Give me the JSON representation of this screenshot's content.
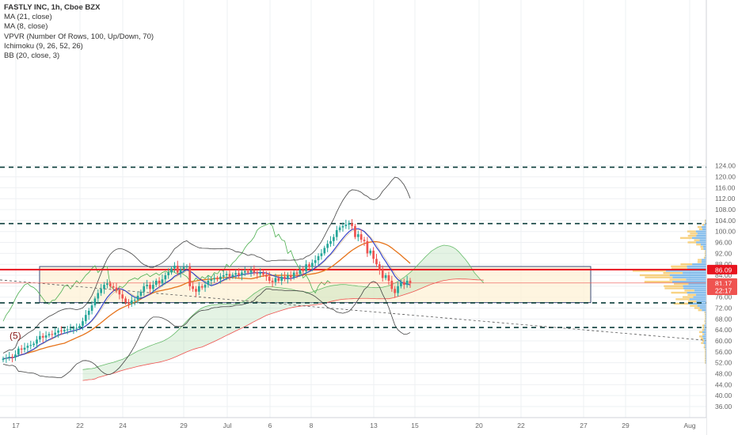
{
  "legend": {
    "title": "FASTLY INC, 1h, Cboe BZX",
    "lines": [
      "MA (21, close)",
      "MA (8, close)",
      "VPVR (Number Of Rows, 100, Up/Down, 70)",
      "Ichimoku (9, 26, 52, 26)",
      "BB (20, close, 3)"
    ]
  },
  "chart_data": {
    "type": "candlestick",
    "symbol": "FASTLY INC",
    "interval": "1h",
    "exchange": "Cboe BZX",
    "y_ticks": [
      36,
      40,
      44,
      48,
      52,
      56,
      60,
      64,
      68,
      72,
      76,
      80,
      84,
      88,
      92,
      96,
      100,
      104,
      108,
      112,
      116,
      120,
      124
    ],
    "y_tick_labels": [
      "36.00",
      "40.00",
      "44.00",
      "48.00",
      "52.00",
      "56.00",
      "60.00",
      "64.00",
      "68.00",
      "72.00",
      "76.00",
      "80.00",
      "84.00",
      "88.00",
      "92.00",
      "96.00",
      "100.00",
      "104.00",
      "108.00",
      "112.00",
      "116.00",
      "120.00",
      "124.00"
    ],
    "ylim": [
      32.5,
      125
    ],
    "x_ticks": [
      "17",
      "22",
      "24",
      "29",
      "Jul",
      "6",
      "8",
      "13",
      "15",
      "20",
      "22",
      "27",
      "29",
      "Aug"
    ],
    "price_labels": [
      {
        "text": "86.09",
        "value": 86.09,
        "color": "#e8141e"
      },
      {
        "text": "81.17",
        "value": 81.17,
        "color": "#ef5350"
      },
      {
        "text": "22:17",
        "value": 78.5,
        "color": "#ef5350"
      }
    ],
    "horizontal_levels": [
      123.5,
      102.9,
      73.9,
      64.9
    ],
    "red_level": 86.09,
    "last_price_line": 81.17,
    "range_box": {
      "top": 87.2,
      "bottom": 74.0
    },
    "annotation": "(5)",
    "close_series": [
      53.5,
      53.8,
      54.2,
      54.0,
      55.0,
      57.2,
      56.8,
      57.5,
      58.2,
      58.5,
      59.0,
      60.5,
      61.8,
      61.2,
      62.0,
      62.5,
      62.2,
      63.0,
      63.8,
      63.5,
      64.0,
      64.2,
      64.4,
      64.5,
      64.8,
      65.5,
      67.2,
      69.5,
      71.0,
      73.0,
      75.5,
      77.5,
      79.0,
      80.5,
      81.0,
      80.0,
      79.5,
      78.5,
      77.0,
      75.5,
      74.0,
      73.5,
      74.8,
      75.0,
      76.5,
      78.0,
      80.0,
      80.5,
      79.0,
      80.5,
      82.0,
      81.0,
      82.5,
      84.0,
      85.0,
      86.5,
      87.5,
      85.0,
      86.2,
      87.0,
      87.2,
      80.0,
      79.0,
      78.0,
      80.0,
      79.5,
      80.5,
      82.0,
      82.5,
      83.0,
      82.5,
      83.5,
      84.0,
      84.5,
      83.5,
      84.2,
      84.8,
      84.0,
      85.0,
      85.5,
      85.0,
      85.8,
      85.0,
      84.5,
      85.0,
      84.2,
      83.5,
      82.0,
      81.5,
      83.0,
      82.0,
      83.5,
      82.8,
      84.0,
      83.2,
      85.0,
      84.5,
      86.0,
      85.5,
      88.0,
      87.0,
      88.5,
      89.5,
      91.0,
      92.0,
      94.0,
      95.5,
      96.5,
      98.0,
      100.5,
      101.5,
      102.0,
      102.5,
      103.0,
      102.0,
      98.0,
      99.0,
      97.0,
      96.5,
      92.0,
      93.0,
      90.0,
      88.0,
      86.0,
      83.0,
      84.0,
      82.0,
      79.0,
      77.5,
      80.0,
      81.5,
      80.5,
      82.0,
      81.17
    ]
  }
}
